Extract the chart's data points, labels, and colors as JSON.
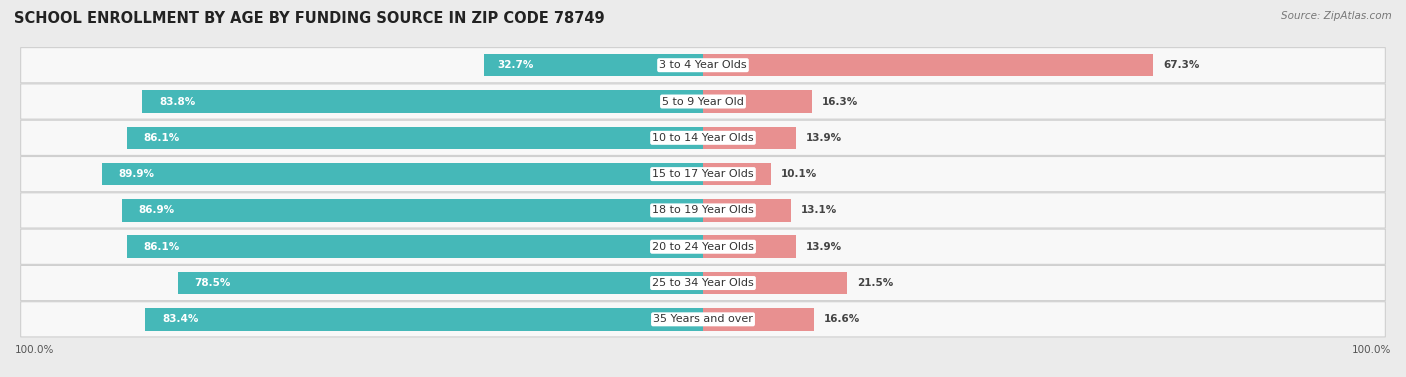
{
  "title": "School Enrollment by Age by Funding Source in Zip Code 78749",
  "source": "Source: ZipAtlas.com",
  "categories": [
    "3 to 4 Year Olds",
    "5 to 9 Year Old",
    "10 to 14 Year Olds",
    "15 to 17 Year Olds",
    "18 to 19 Year Olds",
    "20 to 24 Year Olds",
    "25 to 34 Year Olds",
    "35 Years and over"
  ],
  "public_values": [
    32.7,
    83.8,
    86.1,
    89.9,
    86.9,
    86.1,
    78.5,
    83.4
  ],
  "private_values": [
    67.3,
    16.3,
    13.9,
    10.1,
    13.1,
    13.9,
    21.5,
    16.6
  ],
  "public_color": "#45b8b8",
  "private_color": "#e89090",
  "background_color": "#ebebeb",
  "row_bg_color": "#f8f8f8",
  "row_border_color": "#d0d0d0",
  "title_fontsize": 10.5,
  "label_fontsize": 8.0,
  "bar_label_fontsize": 7.5,
  "axis_label_fontsize": 7.5,
  "source_fontsize": 7.5
}
